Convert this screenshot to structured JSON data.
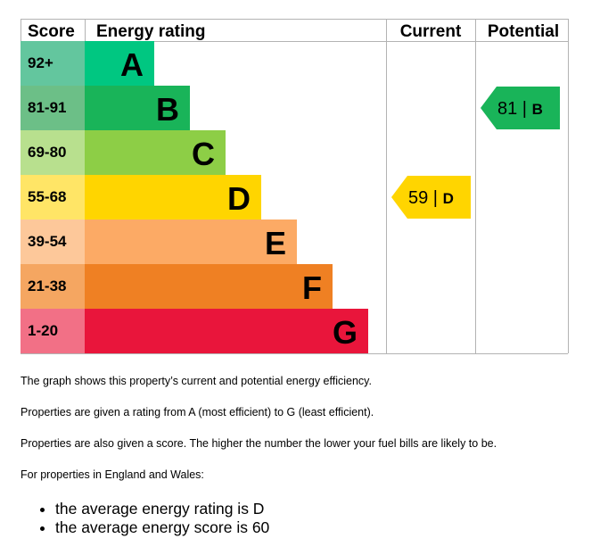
{
  "chart_data": {
    "type": "bar",
    "headers": {
      "score": "Score",
      "rating": "Energy rating",
      "current": "Current",
      "potential": "Potential"
    },
    "bands": [
      {
        "range": "92+",
        "letter": "A",
        "min": 92,
        "max": 100,
        "color": "#008054",
        "score_bg": "#63c69e",
        "bar": "#00c781"
      },
      {
        "range": "81-91",
        "letter": "B",
        "min": 81,
        "max": 91,
        "color": "#19b459",
        "score_bg": "#6cbf87",
        "bar": "#19b459"
      },
      {
        "range": "69-80",
        "letter": "C",
        "min": 69,
        "max": 80,
        "color": "#8dce46",
        "score_bg": "#b8e08e",
        "bar": "#8dce46"
      },
      {
        "range": "55-68",
        "letter": "D",
        "min": 55,
        "max": 68,
        "color": "#ffd500",
        "score_bg": "#ffe566",
        "bar": "#ffd500"
      },
      {
        "range": "39-54",
        "letter": "E",
        "min": 39,
        "max": 54,
        "color": "#fcaa65",
        "score_bg": "#fdc89a",
        "bar": "#fcaa65"
      },
      {
        "range": "21-38",
        "letter": "F",
        "min": 21,
        "max": 38,
        "color": "#ef8023",
        "score_bg": "#f5a661",
        "bar": "#ef8023"
      },
      {
        "range": "1-20",
        "letter": "G",
        "min": 1,
        "max": 20,
        "color": "#e9153b",
        "score_bg": "#f27086",
        "bar": "#e9153b"
      }
    ],
    "current": {
      "score": 59,
      "band": "D",
      "color": "#ffd500"
    },
    "potential": {
      "score": 81,
      "band": "B",
      "color": "#19b459"
    }
  },
  "text": {
    "p1": "The graph shows this property’s current and potential energy efficiency.",
    "p2": "Properties are given a rating from A (most efficient) to G (least efficient).",
    "p3": "Properties are also given a score. The higher the number the lower your fuel bills are likely to be.",
    "p4": "For properties in England and Wales:",
    "bullets": [
      "the average energy rating is D",
      "the average energy score is 60"
    ]
  }
}
